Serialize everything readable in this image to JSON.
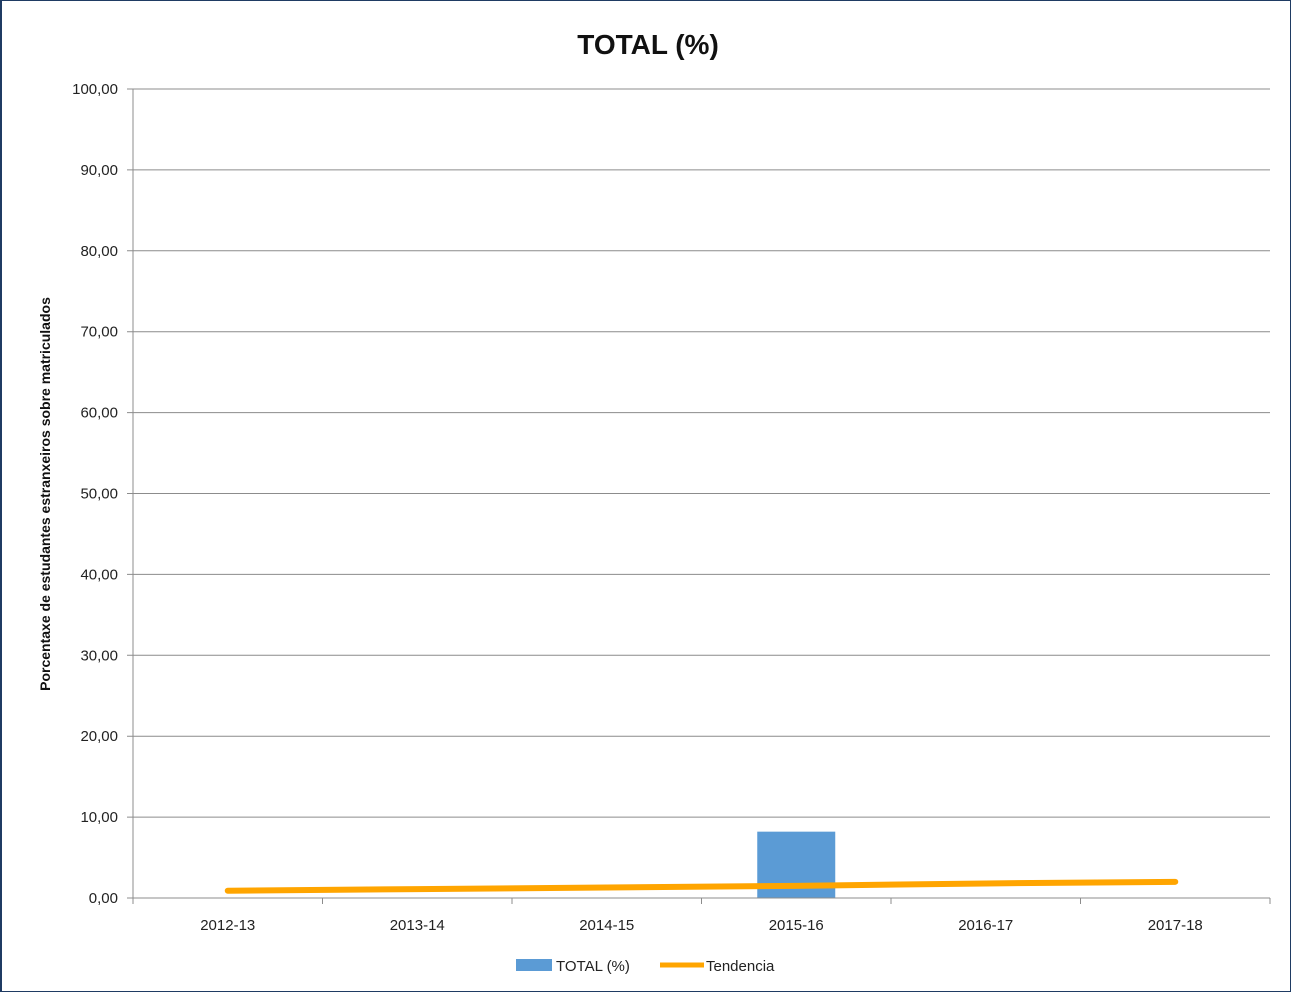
{
  "chart_data": {
    "type": "bar",
    "title": "TOTAL (%)",
    "xlabel": "",
    "ylabel": "Porcentaxe de estudantes estranxeiros sobre matriculados",
    "categories": [
      "2012-13",
      "2013-14",
      "2014-15",
      "2015-16",
      "2016-17",
      "2017-18"
    ],
    "ylim": [
      0,
      100
    ],
    "yticks": [
      "0,00",
      "10,00",
      "20,00",
      "30,00",
      "40,00",
      "50,00",
      "60,00",
      "70,00",
      "80,00",
      "90,00",
      "100,00"
    ],
    "grid": true,
    "legend_position": "bottom",
    "series": [
      {
        "name": "TOTAL (%)",
        "type": "bar",
        "color": "#5b9bd5",
        "values": [
          0,
          0,
          0,
          8.2,
          0,
          0
        ]
      },
      {
        "name": "Tendencia",
        "type": "line",
        "color": "#ffa500",
        "values": [
          0.9,
          1.1,
          1.3,
          1.5,
          1.8,
          2.0
        ]
      }
    ]
  }
}
